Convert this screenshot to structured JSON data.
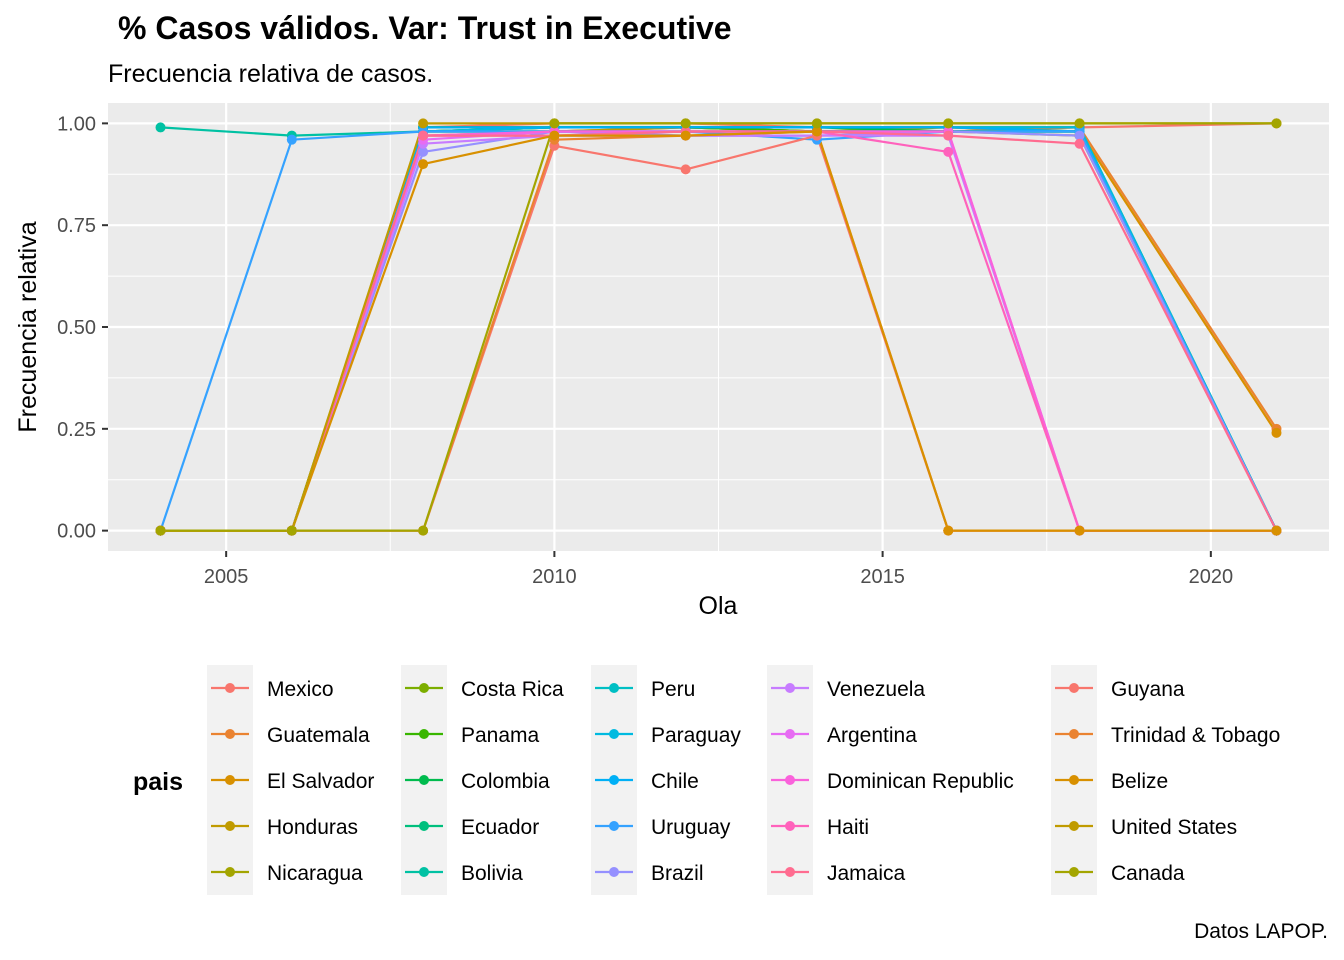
{
  "title": "% Casos válidos. Var: Trust in Executive",
  "subtitle": "Frecuencia relativa de casos.",
  "caption": "Datos LAPOP.",
  "chart_data": {
    "type": "line",
    "xlabel": "Ola",
    "ylabel": "Frecuencia relativa",
    "xlim": [
      2003.2,
      2021.8
    ],
    "ylim": [
      -0.05,
      1.05
    ],
    "x_ticks": [
      2005,
      2010,
      2015,
      2020
    ],
    "x_tick_labels": [
      "2005",
      "2010",
      "2015",
      "2020"
    ],
    "y_ticks": [
      0,
      0.25,
      0.5,
      0.75,
      1
    ],
    "y_tick_labels": [
      "0.00",
      "0.25",
      "0.50",
      "0.75",
      "1.00"
    ],
    "grid": true,
    "legend_title": "pais",
    "legend_position": "bottom",
    "x": [
      2004,
      2006,
      2008,
      2010,
      2012,
      2014,
      2016,
      2018,
      2021
    ],
    "series": [
      {
        "name": "Mexico",
        "color": "#F8766D",
        "values": [
          0,
          0,
          0.99,
          1.0,
          1.0,
          0.99,
          0.99,
          0.99,
          1.0
        ]
      },
      {
        "name": "Guatemala",
        "color": "#EA8331",
        "values": [
          0,
          0,
          0.97,
          0.98,
          0.99,
          0.98,
          0.98,
          0.99,
          0.25
        ]
      },
      {
        "name": "El Salvador",
        "color": "#D89000",
        "values": [
          0,
          0,
          0.98,
          0.99,
          0.99,
          0.99,
          0.99,
          0.98,
          0.24
        ]
      },
      {
        "name": "Honduras",
        "color": "#C09B00",
        "values": [
          0,
          0,
          0.98,
          0.98,
          0.99,
          0.98,
          0.98,
          0.97,
          0
        ]
      },
      {
        "name": "Nicaragua",
        "color": "#A3A500",
        "values": [
          0,
          0,
          0.99,
          0.99,
          0.99,
          0.98,
          0.99,
          0.98,
          0
        ]
      },
      {
        "name": "Costa Rica",
        "color": "#7CAE00",
        "values": [
          0,
          0,
          0.99,
          0.99,
          0.99,
          0.99,
          0.99,
          0.99,
          0
        ]
      },
      {
        "name": "Panama",
        "color": "#39B600",
        "values": [
          0,
          0,
          0.98,
          0.99,
          0.99,
          0.98,
          0.98,
          0.98,
          0
        ]
      },
      {
        "name": "Colombia",
        "color": "#00BB4E",
        "values": [
          0,
          0,
          0.99,
          0.99,
          0.99,
          0.99,
          0.98,
          0.98,
          0
        ]
      },
      {
        "name": "Ecuador",
        "color": "#00BF7D",
        "values": [
          0,
          0,
          0.98,
          0.99,
          0.99,
          0.99,
          0.99,
          0.99,
          0
        ]
      },
      {
        "name": "Bolivia",
        "color": "#00C1A3",
        "values": [
          0.99,
          0.97,
          0.98,
          0.98,
          0.98,
          0.98,
          0.98,
          0.98,
          0
        ]
      },
      {
        "name": "Peru",
        "color": "#00BFC4",
        "values": [
          0,
          0,
          0.98,
          0.98,
          0.98,
          0.98,
          0.98,
          0.98,
          0
        ]
      },
      {
        "name": "Paraguay",
        "color": "#00BAE0",
        "values": [
          0,
          0,
          0.98,
          0.99,
          0.99,
          0.99,
          0.99,
          0.99,
          0
        ]
      },
      {
        "name": "Chile",
        "color": "#00B0F6",
        "values": [
          0,
          0,
          0.99,
          0.99,
          0.99,
          0.99,
          0.99,
          0.98,
          0
        ]
      },
      {
        "name": "Uruguay",
        "color": "#35A2FF",
        "values": [
          0,
          0.96,
          0.98,
          0.98,
          0.98,
          0.96,
          0.98,
          0.98,
          0
        ]
      },
      {
        "name": "Brazil",
        "color": "#9590FF",
        "values": [
          0,
          0,
          0.93,
          0.98,
          0.97,
          0.97,
          0.98,
          0.97,
          0
        ]
      },
      {
        "name": "Venezuela",
        "color": "#C77CFF",
        "values": [
          0,
          0,
          0.95,
          0.97,
          0.97,
          0.97,
          0.97,
          0,
          0
        ]
      },
      {
        "name": "Argentina",
        "color": "#E76BF3",
        "values": [
          0,
          0,
          0.96,
          0.98,
          0.98,
          0.98,
          0.98,
          0,
          0
        ]
      },
      {
        "name": "Dominican Republic",
        "color": "#FA62DB",
        "values": [
          0,
          0,
          0.97,
          0.98,
          0.98,
          0.98,
          0.98,
          0,
          0
        ]
      },
      {
        "name": "Haiti",
        "color": "#FF62BC",
        "values": [
          0,
          0,
          0.97,
          0.97,
          0.98,
          0.98,
          0.93,
          0,
          0
        ]
      },
      {
        "name": "Jamaica",
        "color": "#FF6C90",
        "values": [
          0,
          0,
          0.97,
          0.97,
          0.98,
          0.98,
          0.97,
          0.95,
          0
        ]
      },
      {
        "name": "Guyana",
        "color": "#F8766D",
        "values": [
          0,
          0,
          0,
          0.945,
          0.887,
          0.97,
          0,
          0,
          0
        ]
      },
      {
        "name": "Trinidad & Tobago",
        "color": "#EA8331",
        "values": [
          0,
          0,
          0,
          0.96,
          0.97,
          0.98,
          0,
          0,
          0
        ]
      },
      {
        "name": "Belize",
        "color": "#D89000",
        "values": [
          0,
          0,
          0.9,
          0.97,
          0.97,
          0.98,
          0,
          0,
          0
        ]
      },
      {
        "name": "United States",
        "color": "#C09B00",
        "values": [
          0,
          0,
          1.0,
          1.0,
          1.0,
          1.0,
          1.0,
          1.0,
          1.0
        ]
      },
      {
        "name": "Canada",
        "color": "#A3A500",
        "values": [
          0,
          0,
          0,
          1.0,
          1.0,
          1.0,
          1.0,
          1.0,
          1.0
        ]
      }
    ]
  }
}
